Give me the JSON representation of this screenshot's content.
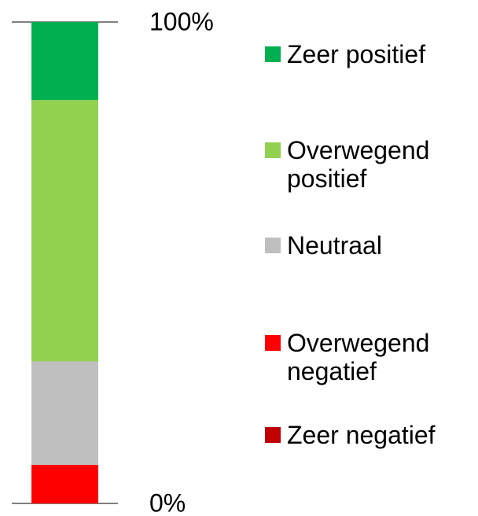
{
  "chart_data": {
    "type": "stacked-bar",
    "series": [
      {
        "name": "Zeer negatief",
        "color": "#c00000",
        "values": [
          0
        ]
      },
      {
        "name": "Overwegend negatief",
        "color": "#ff0000",
        "values": [
          8
        ]
      },
      {
        "name": "Neutraal",
        "color": "#bfbfbf",
        "values": [
          21.5
        ]
      },
      {
        "name": "Overwegend positief",
        "color": "#92d050",
        "values": [
          54.3
        ]
      },
      {
        "name": "Zeer positief",
        "color": "#00b050",
        "values": [
          16.2
        ]
      }
    ],
    "ylim": [
      0,
      100
    ],
    "yticks": [
      {
        "value": 0,
        "label": "0%"
      },
      {
        "value": 100,
        "label": "100%"
      }
    ]
  }
}
